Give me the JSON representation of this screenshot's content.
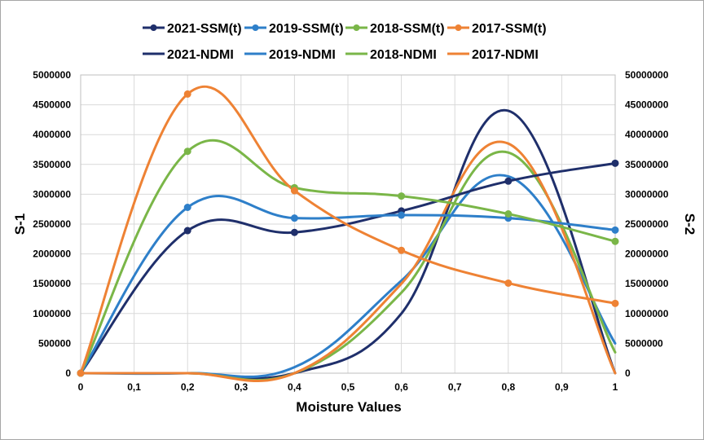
{
  "chart_data": {
    "type": "line",
    "title": "",
    "xlabel": "Moisture Values",
    "ylabel": "S-1",
    "y2label": "S-2",
    "xlim": [
      0,
      1
    ],
    "ylim": [
      0,
      5000000
    ],
    "y2lim": [
      0,
      50000000
    ],
    "x_ticks": [
      "0",
      "0,1",
      "0,2",
      "0,3",
      "0,4",
      "0,5",
      "0,6",
      "0,7",
      "0,8",
      "0,9",
      "1"
    ],
    "y_ticks": [
      "0",
      "500000",
      "1000000",
      "1500000",
      "2000000",
      "2500000",
      "3000000",
      "3500000",
      "4000000",
      "4500000",
      "5000000"
    ],
    "y2_ticks": [
      "0",
      "5000000",
      "10000000",
      "15000000",
      "20000000",
      "25000000",
      "30000000",
      "35000000",
      "40000000",
      "45000000",
      "50000000"
    ],
    "grid": "on",
    "legend_position": "top",
    "series": [
      {
        "name": "2021-SSM(t)",
        "axis": "left",
        "markers": true,
        "color": "#1f2f6b",
        "x": [
          0,
          0.2,
          0.4,
          0.6,
          0.8,
          1
        ],
        "values": [
          0,
          2390000,
          2360000,
          2720000,
          3220000,
          3520000
        ]
      },
      {
        "name": "2019-SSM(t)",
        "axis": "left",
        "markers": true,
        "color": "#2e7fc9",
        "x": [
          0,
          0.2,
          0.4,
          0.6,
          0.8,
          1
        ],
        "values": [
          0,
          2780000,
          2600000,
          2650000,
          2600000,
          2400000
        ]
      },
      {
        "name": "2018-SSM(t)",
        "axis": "left",
        "markers": true,
        "color": "#7ab648",
        "x": [
          0,
          0.2,
          0.4,
          0.6,
          0.8,
          1
        ],
        "values": [
          0,
          3720000,
          3110000,
          2970000,
          2670000,
          2210000
        ]
      },
      {
        "name": "2017-SSM(t)",
        "axis": "left",
        "markers": true,
        "color": "#ee8234",
        "x": [
          0,
          0.2,
          0.4,
          0.6,
          0.8,
          1
        ],
        "values": [
          0,
          4680000,
          3060000,
          2060000,
          1510000,
          1170000
        ]
      },
      {
        "name": "2021-NDMI",
        "axis": "right",
        "markers": false,
        "color": "#1f2f6b",
        "x": [
          0,
          0.2,
          0.4,
          0.6,
          0.8,
          1
        ],
        "values": [
          0,
          0,
          0,
          10000000,
          44000000,
          0
        ]
      },
      {
        "name": "2019-NDMI",
        "axis": "right",
        "markers": false,
        "color": "#2e7fc9",
        "x": [
          0,
          0.2,
          0.4,
          0.6,
          0.8,
          1
        ],
        "values": [
          0,
          0,
          1000000,
          15500000,
          33000000,
          5000000
        ]
      },
      {
        "name": "2018-NDMI",
        "axis": "right",
        "markers": false,
        "color": "#7ab648",
        "x": [
          0,
          0.2,
          0.4,
          0.6,
          0.8,
          1
        ],
        "values": [
          0,
          0,
          0,
          13500000,
          37000000,
          3500000
        ]
      },
      {
        "name": "2017-NDMI",
        "axis": "right",
        "markers": false,
        "color": "#ee8234",
        "x": [
          0,
          0.2,
          0.4,
          0.6,
          0.8,
          1
        ],
        "values": [
          0,
          0,
          0,
          15000000,
          38500000,
          0
        ]
      }
    ]
  }
}
